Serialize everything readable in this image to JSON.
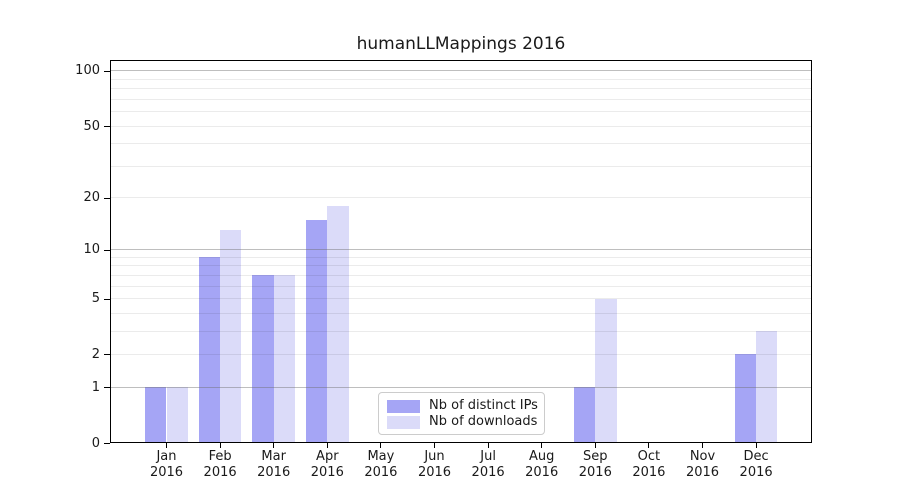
{
  "title": "humanLLMappings 2016",
  "chart_data": {
    "type": "bar",
    "title": "humanLLMappings 2016",
    "categories": [
      "Jan",
      "Feb",
      "Mar",
      "Apr",
      "May",
      "Jun",
      "Jul",
      "Aug",
      "Sep",
      "Oct",
      "Nov",
      "Dec"
    ],
    "year_label": "2016",
    "series": [
      {
        "name": "Nb of distinct IPs",
        "color": "#a5a5f5",
        "values": [
          1,
          9,
          7,
          15,
          0,
          0,
          0,
          0,
          1,
          0,
          0,
          2
        ]
      },
      {
        "name": "Nb of downloads",
        "color": "#dbdbf9",
        "values": [
          1,
          13,
          7,
          18,
          0,
          0,
          0,
          0,
          5,
          0,
          0,
          3
        ]
      }
    ],
    "yscale": "log1p",
    "ylim": [
      0,
      115
    ],
    "yticks": [
      0,
      1,
      2,
      5,
      10,
      20,
      50,
      100
    ],
    "minor_yticks": [
      3,
      4,
      6,
      7,
      8,
      9,
      30,
      40,
      60,
      70,
      80,
      90
    ],
    "emphasized_gridlines": [
      1,
      10,
      100
    ],
    "grid": true,
    "legend_position": "lower-center",
    "grid_over_bars": true
  }
}
